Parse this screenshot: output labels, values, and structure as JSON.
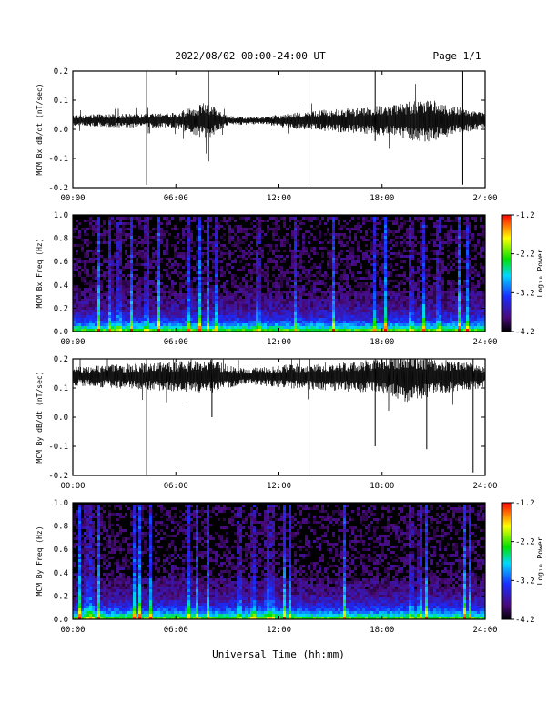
{
  "header": {
    "title": "2022/08/02  00:00-24:00 UT",
    "page": "Page 1/1"
  },
  "xlabel": "Universal Time (hh:mm)",
  "colors": {
    "trace": "#000000",
    "spectrogram_background": "#000000",
    "colorscale": [
      "#000000",
      "#5a0a8c",
      "#1a2cff",
      "#00d8ff",
      "#00e000",
      "#ffff00",
      "#ff0000"
    ]
  },
  "chart_data": [
    {
      "type": "line",
      "ylabel": "MCM Bx dB/dt (nT/sec)",
      "x_ticks": [
        "00:00",
        "06:00",
        "12:00",
        "18:00",
        "24:00"
      ],
      "xlim": [
        0,
        24
      ],
      "y_ticks": [
        "0.2",
        "0.1",
        "0.0",
        "-0.1",
        "-0.2"
      ],
      "ylim": [
        -0.2,
        0.2
      ],
      "baseline": 0.03,
      "noise_envelope": [
        {
          "t": 0,
          "amp": 0.015
        },
        {
          "t": 3,
          "amp": 0.018
        },
        {
          "t": 6,
          "amp": 0.02
        },
        {
          "t": 7.8,
          "amp": 0.05
        },
        {
          "t": 9,
          "amp": 0.012
        },
        {
          "t": 11,
          "amp": 0.01
        },
        {
          "t": 13,
          "amp": 0.022
        },
        {
          "t": 15,
          "amp": 0.03
        },
        {
          "t": 17,
          "amp": 0.035
        },
        {
          "t": 19,
          "amp": 0.045
        },
        {
          "t": 20.5,
          "amp": 0.06
        },
        {
          "t": 22,
          "amp": 0.04
        },
        {
          "t": 24,
          "amp": 0.02
        }
      ],
      "spikes": [
        {
          "t": 4.3,
          "min": -0.19,
          "max": 0.2
        },
        {
          "t": 7.9,
          "min": -0.11,
          "max": 0.2
        },
        {
          "t": 13.75,
          "min": -0.19,
          "max": 0.2
        },
        {
          "t": 17.6,
          "min": -0.04,
          "max": 0.2
        },
        {
          "t": 22.7,
          "min": -0.19,
          "max": 0.2
        }
      ]
    },
    {
      "type": "heatmap",
      "ylabel": "MCM Bx Freq (Hz)",
      "x_ticks": [
        "00:00",
        "06:00",
        "12:00",
        "18:00",
        "24:00"
      ],
      "xlim": [
        0,
        24
      ],
      "y_ticks": [
        "1.0",
        "0.8",
        "0.6",
        "0.4",
        "0.2",
        "0.0"
      ],
      "ylim": [
        0,
        1
      ],
      "colorbar": {
        "label": "Log₁₀ Power",
        "ticks": [
          "-1.2",
          "-2.2",
          "-3.2",
          "-4.2"
        ],
        "range": [
          -4.2,
          -1.2
        ]
      },
      "bright_columns": [
        1.5,
        2.2,
        2.7,
        3.4,
        4.3,
        5.0,
        6.8,
        7.4,
        7.9,
        8.3,
        10.8,
        13.0,
        15.2,
        17.6,
        18.2,
        19.7,
        20.4,
        21.3,
        22.5,
        23.0
      ]
    },
    {
      "type": "line",
      "ylabel": "MCM By dB/dt (nT/sec)",
      "x_ticks": [
        "00:00",
        "06:00",
        "12:00",
        "18:00",
        "24:00"
      ],
      "xlim": [
        0,
        24
      ],
      "y_ticks": [
        "0.2",
        "0.1",
        "0.0",
        "-0.1",
        "-0.2"
      ],
      "ylim": [
        -0.2,
        0.2
      ],
      "baseline": 0.14,
      "noise_envelope": [
        {
          "t": 0,
          "amp": 0.025
        },
        {
          "t": 2,
          "amp": 0.03
        },
        {
          "t": 4,
          "amp": 0.035
        },
        {
          "t": 6,
          "amp": 0.04
        },
        {
          "t": 8,
          "amp": 0.045
        },
        {
          "t": 10,
          "amp": 0.02
        },
        {
          "t": 12,
          "amp": 0.03
        },
        {
          "t": 14,
          "amp": 0.035
        },
        {
          "t": 16,
          "amp": 0.04
        },
        {
          "t": 18,
          "amp": 0.045
        },
        {
          "t": 19.5,
          "amp": 0.07
        },
        {
          "t": 21,
          "amp": 0.05
        },
        {
          "t": 24,
          "amp": 0.03
        }
      ],
      "spikes": [
        {
          "t": 4.3,
          "min": -0.2,
          "max": 0.2
        },
        {
          "t": 8.1,
          "min": 0.0,
          "max": 0.2
        },
        {
          "t": 13.75,
          "min": -0.2,
          "max": 0.2
        },
        {
          "t": 17.6,
          "min": -0.1,
          "max": 0.2
        },
        {
          "t": 20.6,
          "min": -0.11,
          "max": 0.2
        },
        {
          "t": 23.3,
          "min": -0.19,
          "max": 0.2
        }
      ]
    },
    {
      "type": "heatmap",
      "ylabel": "MCM By Freq (Hz)",
      "x_ticks": [
        "00:00",
        "06:00",
        "12:00",
        "18:00",
        "24:00"
      ],
      "xlim": [
        0,
        24
      ],
      "y_ticks": [
        "1.0",
        "0.8",
        "0.6",
        "0.4",
        "0.2",
        "0.0"
      ],
      "ylim": [
        0,
        1
      ],
      "colorbar": {
        "label": "Log₁₀ Power",
        "ticks": [
          "-1.2",
          "-2.2",
          "-3.2",
          "-4.2"
        ],
        "range": [
          -4.2,
          -1.2
        ]
      },
      "bright_columns": [
        0.4,
        0.8,
        1.1,
        1.5,
        3.6,
        3.9,
        4.5,
        6.8,
        7.2,
        7.9,
        9.7,
        10.5,
        11.3,
        11.6,
        12.3,
        12.6,
        15.8,
        19.7,
        20.2,
        20.6,
        22.8,
        23.1
      ]
    }
  ]
}
